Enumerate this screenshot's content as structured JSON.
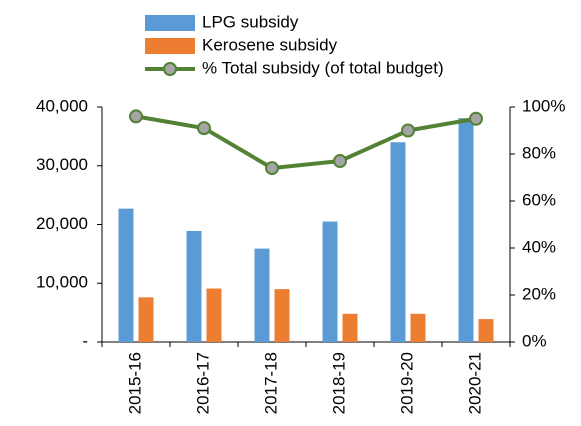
{
  "chart_data": {
    "type": "bar",
    "categories": [
      "2015-16",
      "2016-17",
      "2017-18",
      "2018-19",
      "2019-20",
      "2020-21"
    ],
    "series": [
      {
        "name": "LPG subsidy",
        "color": "#5b9bd5",
        "values": [
          22700,
          18900,
          15900,
          20500,
          34000,
          38100
        ]
      },
      {
        "name": "Kerosene subsidy",
        "color": "#ed7d31",
        "values": [
          7600,
          9100,
          9000,
          4800,
          4800,
          3900
        ]
      },
      {
        "name": "% Total subsidy (of total budget)",
        "type": "line",
        "axis": "y2",
        "color": "#548235",
        "marker_color": "#a5a5a5",
        "values": [
          96,
          91,
          74,
          77,
          90,
          95
        ]
      }
    ],
    "ylim": [
      0,
      40000
    ],
    "yticks": [
      {
        "value": 0,
        "label": "-"
      },
      {
        "value": 10000,
        "label": "10,000"
      },
      {
        "value": 20000,
        "label": "20,000"
      },
      {
        "value": 30000,
        "label": "30,000"
      },
      {
        "value": 40000,
        "label": "40,000"
      }
    ],
    "y2lim": [
      0,
      100
    ],
    "y2ticks": [
      {
        "value": 0,
        "label": "0%"
      },
      {
        "value": 20,
        "label": "20%"
      },
      {
        "value": 40,
        "label": "40%"
      },
      {
        "value": 60,
        "label": "60%"
      },
      {
        "value": 80,
        "label": "80%"
      },
      {
        "value": 100,
        "label": "100%"
      }
    ],
    "legend": "top"
  }
}
